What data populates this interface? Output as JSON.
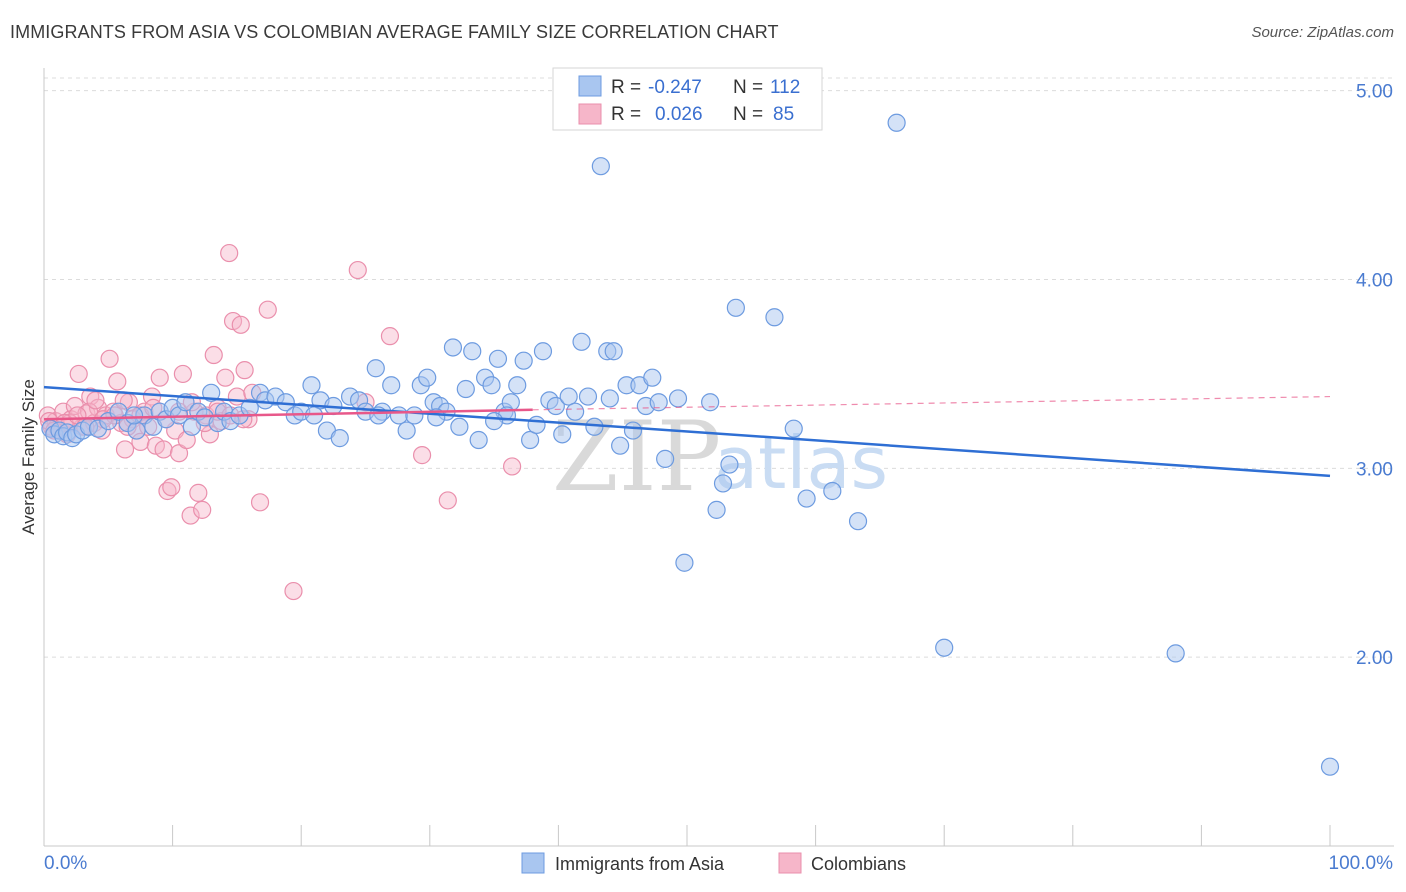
{
  "header": {
    "title": "IMMIGRANTS FROM ASIA VS COLOMBIAN AVERAGE FAMILY SIZE CORRELATION CHART",
    "source": "Source: ZipAtlas.com"
  },
  "watermark": {
    "zip": "ZIP",
    "atlas": "atlas"
  },
  "colors": {
    "asia_fill": "#a9c6f0",
    "asia_stroke": "#6d9be0",
    "asia_line": "#2f6fd4",
    "col_fill": "#f6b6c9",
    "col_stroke": "#ea8fac",
    "col_line": "#e8588a",
    "grid": "#dcdcdc",
    "tick_text": "#4a7bd0"
  },
  "legend": {
    "rows": [
      {
        "r_label": "R = ",
        "r_value": "-0.247",
        "n_label": "N = ",
        "n_value": "112"
      },
      {
        "r_label": "R = ",
        "r_value": "0.026",
        "n_label": "N = ",
        "n_value": "85"
      }
    ]
  },
  "chart_data": {
    "type": "scatter",
    "title": "IMMIGRANTS FROM ASIA VS COLOMBIAN AVERAGE FAMILY SIZE CORRELATION CHART",
    "xlabel": "",
    "ylabel": "Average Family Size",
    "xlim": [
      0,
      100
    ],
    "ylim": [
      1.0,
      5.12
    ],
    "x_tick_labels": [
      "0.0%",
      "100.0%"
    ],
    "y_ticks": [
      2.0,
      3.0,
      4.0,
      5.0
    ],
    "y_tick_labels": [
      "2.00",
      "3.00",
      "4.00",
      "5.00"
    ],
    "grid": true,
    "legend_position": "bottom-center",
    "series": [
      {
        "name": "Immigrants from Asia",
        "r": -0.247,
        "n": 112,
        "trend": {
          "x": [
            0,
            100
          ],
          "y": [
            3.43,
            2.96
          ],
          "dashed_x": null
        },
        "points": [
          [
            0.5,
            3.21
          ],
          [
            0.8,
            3.18
          ],
          [
            1.2,
            3.2
          ],
          [
            1.5,
            3.17
          ],
          [
            1.8,
            3.19
          ],
          [
            2.2,
            3.16
          ],
          [
            2.5,
            3.18
          ],
          [
            3.0,
            3.2
          ],
          [
            3.5,
            3.22
          ],
          [
            4.2,
            3.21
          ],
          [
            5.0,
            3.25
          ],
          [
            5.8,
            3.3
          ],
          [
            6.5,
            3.24
          ],
          [
            7.2,
            3.2
          ],
          [
            7.8,
            3.28
          ],
          [
            8.5,
            3.22
          ],
          [
            9.0,
            3.3
          ],
          [
            9.5,
            3.26
          ],
          [
            10.0,
            3.32
          ],
          [
            10.5,
            3.28
          ],
          [
            11.0,
            3.35
          ],
          [
            11.5,
            3.22
          ],
          [
            12.0,
            3.3
          ],
          [
            12.5,
            3.27
          ],
          [
            13.0,
            3.4
          ],
          [
            13.5,
            3.24
          ],
          [
            14.0,
            3.3
          ],
          [
            14.5,
            3.25
          ],
          [
            15.2,
            3.28
          ],
          [
            16.0,
            3.32
          ],
          [
            16.8,
            3.4
          ],
          [
            17.2,
            3.36
          ],
          [
            18.0,
            3.38
          ],
          [
            18.8,
            3.35
          ],
          [
            19.5,
            3.28
          ],
          [
            20.0,
            3.3
          ],
          [
            20.8,
            3.44
          ],
          [
            21.5,
            3.36
          ],
          [
            22.0,
            3.2
          ],
          [
            22.5,
            3.33
          ],
          [
            23.0,
            3.16
          ],
          [
            23.8,
            3.38
          ],
          [
            24.5,
            3.36
          ],
          [
            25.0,
            3.3
          ],
          [
            25.8,
            3.53
          ],
          [
            26.3,
            3.3
          ],
          [
            27.0,
            3.44
          ],
          [
            27.6,
            3.28
          ],
          [
            28.2,
            3.2
          ],
          [
            28.8,
            3.28
          ],
          [
            29.3,
            3.44
          ],
          [
            29.8,
            3.48
          ],
          [
            30.3,
            3.35
          ],
          [
            30.8,
            3.33
          ],
          [
            31.3,
            3.3
          ],
          [
            31.8,
            3.64
          ],
          [
            32.3,
            3.22
          ],
          [
            32.8,
            3.42
          ],
          [
            33.3,
            3.62
          ],
          [
            33.8,
            3.15
          ],
          [
            34.3,
            3.48
          ],
          [
            34.8,
            3.44
          ],
          [
            35.3,
            3.58
          ],
          [
            35.8,
            3.3
          ],
          [
            36.3,
            3.35
          ],
          [
            36.8,
            3.44
          ],
          [
            37.3,
            3.57
          ],
          [
            37.8,
            3.15
          ],
          [
            38.3,
            3.23
          ],
          [
            38.8,
            3.62
          ],
          [
            39.3,
            3.36
          ],
          [
            39.8,
            3.33
          ],
          [
            40.3,
            3.18
          ],
          [
            40.8,
            3.38
          ],
          [
            41.3,
            3.3
          ],
          [
            41.8,
            3.67
          ],
          [
            42.3,
            3.38
          ],
          [
            42.8,
            3.22
          ],
          [
            43.3,
            4.6
          ],
          [
            43.8,
            3.62
          ],
          [
            44.3,
            3.62
          ],
          [
            44.8,
            3.12
          ],
          [
            45.3,
            3.44
          ],
          [
            45.8,
            3.2
          ],
          [
            46.3,
            3.44
          ],
          [
            46.8,
            3.33
          ],
          [
            47.3,
            3.48
          ],
          [
            47.8,
            3.35
          ],
          [
            48.3,
            3.05
          ],
          [
            49.3,
            3.37
          ],
          [
            49.8,
            2.5
          ],
          [
            51.8,
            3.35
          ],
          [
            52.3,
            2.78
          ],
          [
            52.8,
            2.92
          ],
          [
            53.3,
            3.02
          ],
          [
            53.8,
            3.85
          ],
          [
            56.8,
            3.8
          ],
          [
            58.3,
            3.21
          ],
          [
            59.3,
            2.84
          ],
          [
            61.3,
            2.88
          ],
          [
            63.3,
            2.72
          ],
          [
            66.3,
            4.83
          ],
          [
            70.0,
            2.05
          ],
          [
            88.0,
            2.02
          ],
          [
            100.0,
            1.42
          ],
          [
            7.0,
            3.28
          ],
          [
            21.0,
            3.28
          ],
          [
            26.0,
            3.28
          ],
          [
            30.5,
            3.27
          ],
          [
            36.0,
            3.28
          ],
          [
            44.0,
            3.37
          ],
          [
            35.0,
            3.25
          ]
        ]
      },
      {
        "name": "Colombians",
        "r": 0.026,
        "n": 85,
        "trend": {
          "x": [
            0,
            38
          ],
          "y": [
            3.26,
            3.31
          ],
          "dashed_x": [
            38,
            100
          ],
          "dashed_y": [
            3.31,
            3.38
          ]
        },
        "points": [
          [
            0.3,
            3.28
          ],
          [
            0.6,
            3.22
          ],
          [
            0.9,
            3.25
          ],
          [
            1.2,
            3.2
          ],
          [
            1.5,
            3.3
          ],
          [
            1.8,
            3.18
          ],
          [
            2.1,
            3.26
          ],
          [
            2.4,
            3.33
          ],
          [
            2.7,
            3.5
          ],
          [
            3.0,
            3.22
          ],
          [
            3.3,
            3.29
          ],
          [
            3.6,
            3.38
          ],
          [
            3.9,
            3.24
          ],
          [
            4.2,
            3.32
          ],
          [
            4.5,
            3.2
          ],
          [
            4.8,
            3.28
          ],
          [
            5.1,
            3.58
          ],
          [
            5.4,
            3.3
          ],
          [
            5.7,
            3.46
          ],
          [
            6.0,
            3.24
          ],
          [
            6.3,
            3.1
          ],
          [
            6.6,
            3.35
          ],
          [
            6.9,
            3.26
          ],
          [
            7.2,
            3.2
          ],
          [
            7.5,
            3.14
          ],
          [
            7.8,
            3.3
          ],
          [
            8.1,
            3.22
          ],
          [
            8.4,
            3.38
          ],
          [
            8.7,
            3.12
          ],
          [
            9.0,
            3.48
          ],
          [
            9.3,
            3.1
          ],
          [
            9.6,
            2.88
          ],
          [
            9.9,
            2.9
          ],
          [
            10.2,
            3.2
          ],
          [
            10.5,
            3.08
          ],
          [
            10.8,
            3.5
          ],
          [
            11.1,
            3.15
          ],
          [
            11.4,
            2.75
          ],
          [
            11.7,
            3.3
          ],
          [
            12.0,
            2.87
          ],
          [
            12.3,
            2.78
          ],
          [
            12.6,
            3.28
          ],
          [
            12.9,
            3.18
          ],
          [
            13.2,
            3.6
          ],
          [
            13.5,
            3.32
          ],
          [
            13.8,
            3.25
          ],
          [
            14.1,
            3.48
          ],
          [
            14.4,
            4.14
          ],
          [
            14.7,
            3.78
          ],
          [
            15.0,
            3.38
          ],
          [
            15.3,
            3.76
          ],
          [
            15.6,
            3.52
          ],
          [
            15.9,
            3.26
          ],
          [
            16.2,
            3.4
          ],
          [
            16.8,
            2.82
          ],
          [
            17.4,
            3.84
          ],
          [
            19.4,
            2.35
          ],
          [
            24.4,
            4.05
          ],
          [
            26.9,
            3.7
          ],
          [
            29.4,
            3.07
          ],
          [
            31.4,
            2.83
          ],
          [
            36.4,
            3.01
          ],
          [
            1.0,
            3.22
          ],
          [
            2.0,
            3.24
          ],
          [
            3.5,
            3.3
          ],
          [
            4.0,
            3.36
          ],
          [
            5.5,
            3.28
          ],
          [
            6.5,
            3.22
          ],
          [
            7.5,
            3.28
          ],
          [
            8.5,
            3.32
          ],
          [
            9.5,
            3.26
          ],
          [
            10.5,
            3.3
          ],
          [
            11.5,
            3.35
          ],
          [
            12.5,
            3.24
          ],
          [
            13.5,
            3.3
          ],
          [
            14.5,
            3.28
          ],
          [
            15.5,
            3.26
          ],
          [
            0.4,
            3.25
          ],
          [
            0.8,
            3.2
          ],
          [
            1.6,
            3.24
          ],
          [
            2.6,
            3.28
          ],
          [
            3.2,
            3.22
          ],
          [
            4.6,
            3.26
          ],
          [
            6.2,
            3.36
          ],
          [
            25.0,
            3.35
          ]
        ]
      }
    ]
  }
}
